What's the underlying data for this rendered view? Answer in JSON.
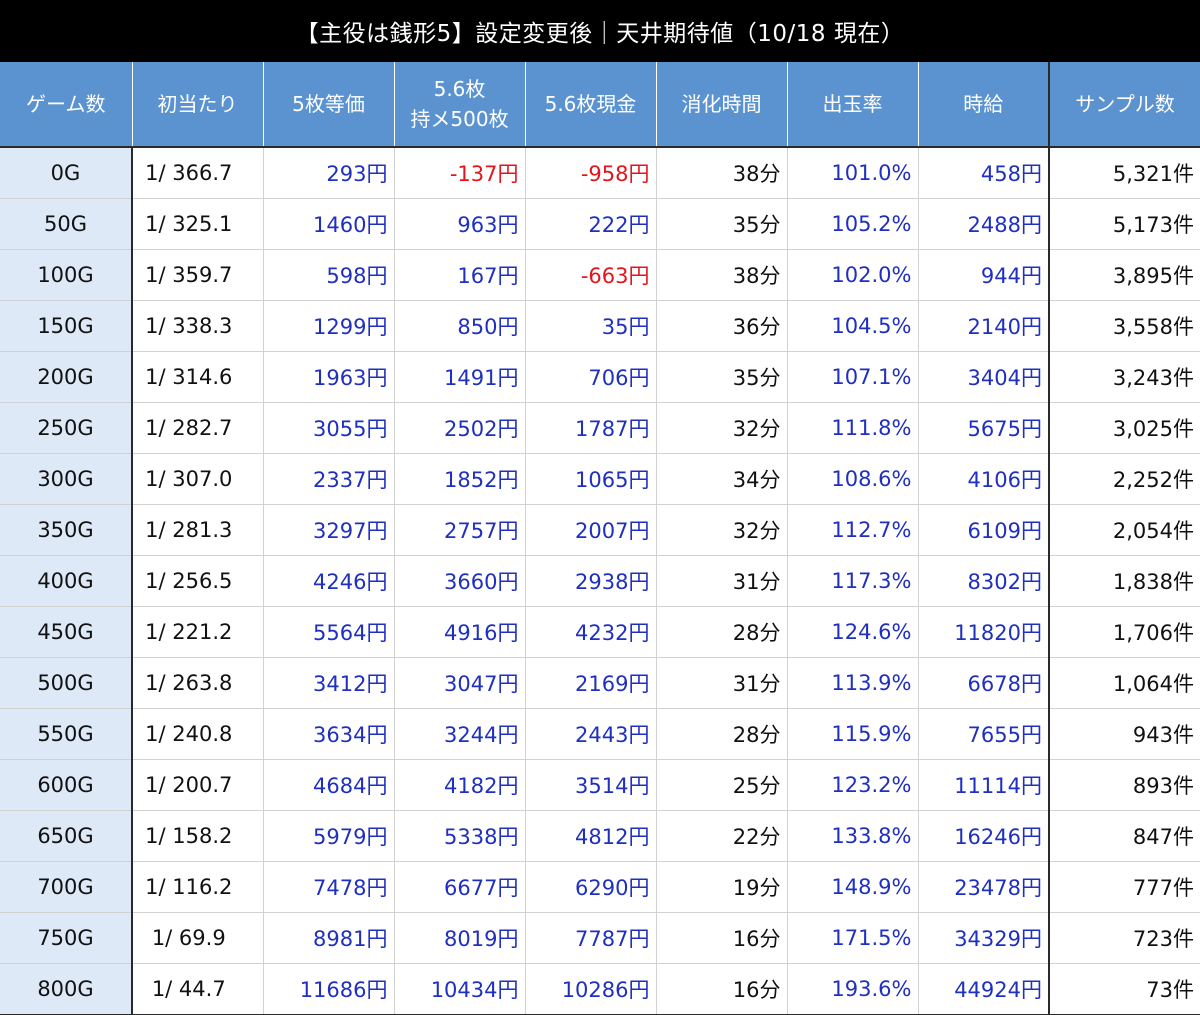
{
  "title": "【主役は銭形5】設定変更後｜天井期待値（10/18 現在）",
  "headers": {
    "game": "ゲーム数",
    "first_hit": "初当たり",
    "equiv5": "5枚等価",
    "hold_line1": "5.6枚",
    "hold_line2": "持メ500枚",
    "cash56": "5.6枚現金",
    "time": "消化時間",
    "payout": "出玉率",
    "hourly": "時給",
    "samples": "サンプル数"
  },
  "colors": {
    "header_bg": "#5b93d0",
    "positive": "#1f2fbf",
    "negative": "#e3141b",
    "first_col_bg": "#dde9f6"
  },
  "rows": [
    {
      "game": "0G",
      "first_hit": "1/ 366.7",
      "equiv5": "293円",
      "hold500": "-137円",
      "cash56": "-958円",
      "time": "38分",
      "payout": "101.0%",
      "hourly": "458円",
      "samples": "5,321件"
    },
    {
      "game": "50G",
      "first_hit": "1/ 325.1",
      "equiv5": "1460円",
      "hold500": "963円",
      "cash56": "222円",
      "time": "35分",
      "payout": "105.2%",
      "hourly": "2488円",
      "samples": "5,173件"
    },
    {
      "game": "100G",
      "first_hit": "1/ 359.7",
      "equiv5": "598円",
      "hold500": "167円",
      "cash56": "-663円",
      "time": "38分",
      "payout": "102.0%",
      "hourly": "944円",
      "samples": "3,895件"
    },
    {
      "game": "150G",
      "first_hit": "1/ 338.3",
      "equiv5": "1299円",
      "hold500": "850円",
      "cash56": "35円",
      "time": "36分",
      "payout": "104.5%",
      "hourly": "2140円",
      "samples": "3,558件"
    },
    {
      "game": "200G",
      "first_hit": "1/ 314.6",
      "equiv5": "1963円",
      "hold500": "1491円",
      "cash56": "706円",
      "time": "35分",
      "payout": "107.1%",
      "hourly": "3404円",
      "samples": "3,243件"
    },
    {
      "game": "250G",
      "first_hit": "1/ 282.7",
      "equiv5": "3055円",
      "hold500": "2502円",
      "cash56": "1787円",
      "time": "32分",
      "payout": "111.8%",
      "hourly": "5675円",
      "samples": "3,025件"
    },
    {
      "game": "300G",
      "first_hit": "1/ 307.0",
      "equiv5": "2337円",
      "hold500": "1852円",
      "cash56": "1065円",
      "time": "34分",
      "payout": "108.6%",
      "hourly": "4106円",
      "samples": "2,252件"
    },
    {
      "game": "350G",
      "first_hit": "1/ 281.3",
      "equiv5": "3297円",
      "hold500": "2757円",
      "cash56": "2007円",
      "time": "32分",
      "payout": "112.7%",
      "hourly": "6109円",
      "samples": "2,054件"
    },
    {
      "game": "400G",
      "first_hit": "1/ 256.5",
      "equiv5": "4246円",
      "hold500": "3660円",
      "cash56": "2938円",
      "time": "31分",
      "payout": "117.3%",
      "hourly": "8302円",
      "samples": "1,838件"
    },
    {
      "game": "450G",
      "first_hit": "1/ 221.2",
      "equiv5": "5564円",
      "hold500": "4916円",
      "cash56": "4232円",
      "time": "28分",
      "payout": "124.6%",
      "hourly": "11820円",
      "samples": "1,706件"
    },
    {
      "game": "500G",
      "first_hit": "1/ 263.8",
      "equiv5": "3412円",
      "hold500": "3047円",
      "cash56": "2169円",
      "time": "31分",
      "payout": "113.9%",
      "hourly": "6678円",
      "samples": "1,064件"
    },
    {
      "game": "550G",
      "first_hit": "1/ 240.8",
      "equiv5": "3634円",
      "hold500": "3244円",
      "cash56": "2443円",
      "time": "28分",
      "payout": "115.9%",
      "hourly": "7655円",
      "samples": "943件"
    },
    {
      "game": "600G",
      "first_hit": "1/ 200.7",
      "equiv5": "4684円",
      "hold500": "4182円",
      "cash56": "3514円",
      "time": "25分",
      "payout": "123.2%",
      "hourly": "11114円",
      "samples": "893件"
    },
    {
      "game": "650G",
      "first_hit": "1/ 158.2",
      "equiv5": "5979円",
      "hold500": "5338円",
      "cash56": "4812円",
      "time": "22分",
      "payout": "133.8%",
      "hourly": "16246円",
      "samples": "847件"
    },
    {
      "game": "700G",
      "first_hit": "1/ 116.2",
      "equiv5": "7478円",
      "hold500": "6677円",
      "cash56": "6290円",
      "time": "19分",
      "payout": "148.9%",
      "hourly": "23478円",
      "samples": "777件"
    },
    {
      "game": "750G",
      "first_hit": "1/ 69.9",
      "equiv5": "8981円",
      "hold500": "8019円",
      "cash56": "7787円",
      "time": "16分",
      "payout": "171.5%",
      "hourly": "34329円",
      "samples": "723件"
    },
    {
      "game": "800G",
      "first_hit": "1/ 44.7",
      "equiv5": "11686円",
      "hold500": "10434円",
      "cash56": "10286円",
      "time": "16分",
      "payout": "193.6%",
      "hourly": "44924円",
      "samples": "73件"
    }
  ]
}
